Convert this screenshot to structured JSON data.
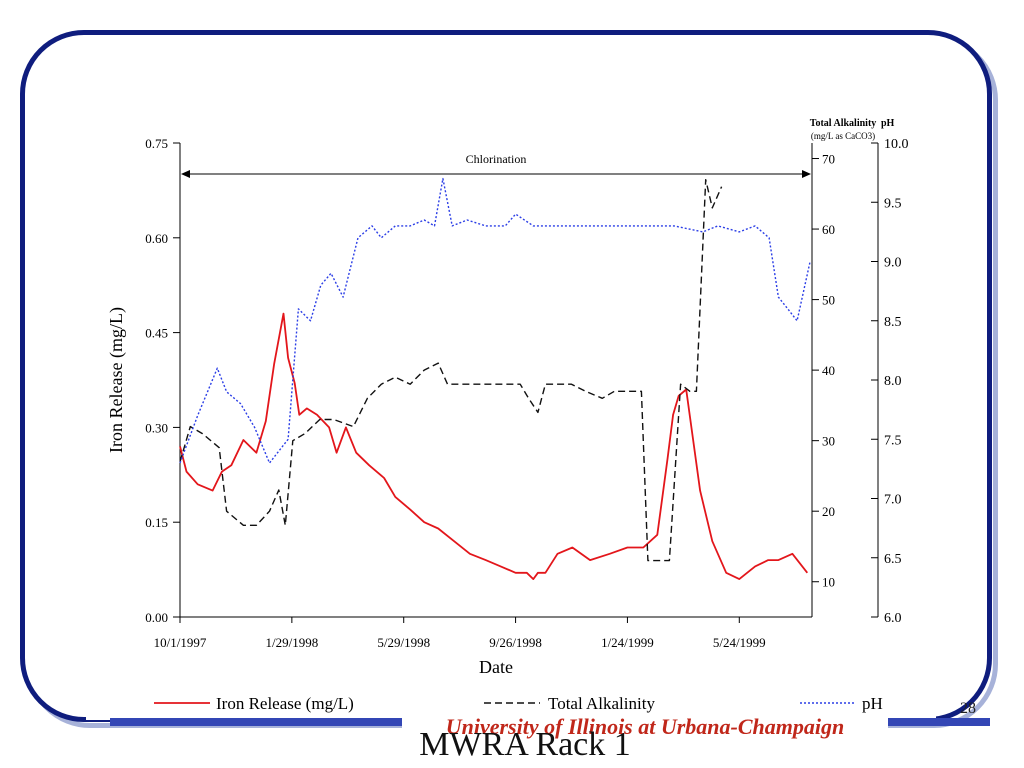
{
  "slide": {
    "title": "MWRA Rack 1",
    "page_number": "28",
    "university": "University of Illinois at Urbana-Champaign"
  },
  "colors": {
    "iron": "#e3161b",
    "alkalinity": "#111111",
    "ph": "#2b3ee6",
    "frame": "#0f1d7e",
    "footer_bar": "#3346b5",
    "university_text": "#c0271a"
  },
  "chart_data": {
    "type": "line",
    "xlabel": "Date",
    "ylabel": "Iron Release (mg/L)",
    "x_ticks": [
      "10/1/1997",
      "1/29/1998",
      "5/29/1998",
      "9/26/1998",
      "1/24/1999",
      "5/24/1999"
    ],
    "x_range": [
      "10/1/1997",
      "8/10/1999"
    ],
    "annotation": "Chlorination",
    "legend_position": "bottom",
    "grid": false,
    "y_left": {
      "label": "Iron Release (mg/L)",
      "range": [
        0,
        0.75
      ],
      "ticks": [
        "0.00",
        "0.15",
        "0.30",
        "0.45",
        "0.60",
        "0.75"
      ]
    },
    "y_right1": {
      "label": "Total Alkalinity",
      "unit": "(mg/L as CaCO3)",
      "range": [
        5,
        72.2
      ],
      "ticks": [
        "10",
        "20",
        "30",
        "40",
        "50",
        "60",
        "70"
      ]
    },
    "y_right2": {
      "label": "pH",
      "range": [
        6.0,
        10.0
      ],
      "ticks": [
        "6.0",
        "6.5",
        "7.0",
        "7.5",
        "8.0",
        "8.5",
        "9.0",
        "9.5",
        "10.0"
      ]
    },
    "series": [
      {
        "name": "Iron Release (mg/L)",
        "axis": "left",
        "style": "solid",
        "x": [
          "1997-10-01",
          "1997-10-08",
          "1997-10-20",
          "1997-11-05",
          "1997-11-15",
          "1997-11-25",
          "1997-12-08",
          "1997-12-22",
          "1998-01-01",
          "1998-01-10",
          "1998-01-20",
          "1998-01-25",
          "1998-02-01",
          "1998-02-06",
          "1998-02-14",
          "1998-02-25",
          "1998-03-10",
          "1998-03-18",
          "1998-03-28",
          "1998-04-08",
          "1998-04-22",
          "1998-05-08",
          "1998-05-20",
          "1998-06-05",
          "1998-06-20",
          "1998-07-05",
          "1998-07-22",
          "1998-08-08",
          "1998-08-25",
          "1998-09-10",
          "1998-09-26",
          "1998-10-08",
          "1998-10-15",
          "1998-10-20",
          "1998-10-28",
          "1998-11-10",
          "1998-11-26",
          "1998-12-15",
          "1999-01-05",
          "1999-01-24",
          "1999-02-10",
          "1999-02-25",
          "1999-03-08",
          "1999-03-14",
          "1999-03-20",
          "1999-03-28",
          "1999-04-12",
          "1999-04-25",
          "1999-05-10",
          "1999-05-24",
          "1999-06-10",
          "1999-06-24",
          "1999-07-05",
          "1999-07-20",
          "1999-08-05"
        ],
        "values": [
          0.27,
          0.23,
          0.21,
          0.2,
          0.23,
          0.24,
          0.28,
          0.26,
          0.31,
          0.4,
          0.48,
          0.41,
          0.37,
          0.32,
          0.33,
          0.32,
          0.3,
          0.26,
          0.3,
          0.26,
          0.24,
          0.22,
          0.19,
          0.17,
          0.15,
          0.14,
          0.12,
          0.1,
          0.09,
          0.08,
          0.07,
          0.07,
          0.06,
          0.07,
          0.07,
          0.1,
          0.11,
          0.09,
          0.1,
          0.11,
          0.11,
          0.13,
          0.25,
          0.32,
          0.35,
          0.36,
          0.2,
          0.12,
          0.07,
          0.06,
          0.08,
          0.09,
          0.09,
          0.1,
          0.07
        ]
      },
      {
        "name": "Total Alkalinity",
        "axis": "right1",
        "style": "dashed",
        "x": [
          "1997-10-01",
          "1997-10-12",
          "1997-10-25",
          "1997-11-12",
          "1997-11-20",
          "1997-12-08",
          "1997-12-22",
          "1998-01-05",
          "1998-01-15",
          "1998-01-22",
          "1998-01-30",
          "1998-02-12",
          "1998-02-28",
          "1998-03-15",
          "1998-04-05",
          "1998-04-20",
          "1998-05-05",
          "1998-05-20",
          "1998-06-05",
          "1998-06-20",
          "1998-07-05",
          "1998-07-15",
          "1998-07-30",
          "1998-08-15",
          "1998-09-01",
          "1998-09-20",
          "1998-10-01",
          "1998-10-10",
          "1998-10-20",
          "1998-10-28",
          "1998-11-10",
          "1998-11-25",
          "1998-12-10",
          "1998-12-28",
          "1999-01-10",
          "1999-01-24",
          "1999-02-08",
          "1999-02-15",
          "1999-02-25",
          "1999-03-10",
          "1999-03-22",
          "1999-04-01",
          "1999-04-08",
          "1999-04-18",
          "1999-04-25",
          "1999-05-05"
        ],
        "values": [
          27,
          32,
          31,
          29,
          20,
          18,
          18,
          20,
          23,
          18,
          30,
          31,
          33,
          33,
          32,
          36,
          38,
          39,
          38,
          40,
          41,
          38,
          38,
          38,
          38,
          38,
          38,
          36,
          34,
          38,
          38,
          38,
          37,
          36,
          37,
          37,
          37,
          13,
          13,
          13,
          38,
          37,
          37,
          67,
          63,
          66
        ]
      },
      {
        "name": "pH",
        "axis": "right2",
        "style": "dotted",
        "x": [
          "1997-10-01",
          "1997-10-20",
          "1997-11-10",
          "1997-11-20",
          "1997-12-05",
          "1997-12-20",
          "1998-01-05",
          "1998-01-15",
          "1998-01-25",
          "1998-02-05",
          "1998-02-18",
          "1998-03-01",
          "1998-03-12",
          "1998-03-25",
          "1998-04-10",
          "1998-04-25",
          "1998-05-05",
          "1998-05-20",
          "1998-06-05",
          "1998-06-20",
          "1998-07-01",
          "1998-07-10",
          "1998-07-20",
          "1998-08-05",
          "1998-08-25",
          "1998-09-15",
          "1998-09-26",
          "1998-10-15",
          "1998-11-01",
          "1998-12-01",
          "1999-01-01",
          "1999-01-24",
          "1999-02-15",
          "1999-03-15",
          "1999-04-15",
          "1999-05-01",
          "1999-05-24",
          "1999-06-10",
          "1999-06-25",
          "1999-07-05",
          "1999-07-15",
          "1999-07-25",
          "1999-08-08"
        ],
        "values": [
          7.3,
          7.7,
          8.1,
          7.9,
          7.8,
          7.6,
          7.3,
          7.4,
          7.5,
          8.6,
          8.5,
          8.8,
          8.9,
          8.7,
          9.2,
          9.3,
          9.2,
          9.3,
          9.3,
          9.35,
          9.3,
          9.7,
          9.3,
          9.35,
          9.3,
          9.3,
          9.4,
          9.3,
          9.3,
          9.3,
          9.3,
          9.3,
          9.3,
          9.3,
          9.25,
          9.3,
          9.25,
          9.3,
          9.2,
          8.7,
          8.6,
          8.5,
          9.0
        ]
      }
    ]
  }
}
